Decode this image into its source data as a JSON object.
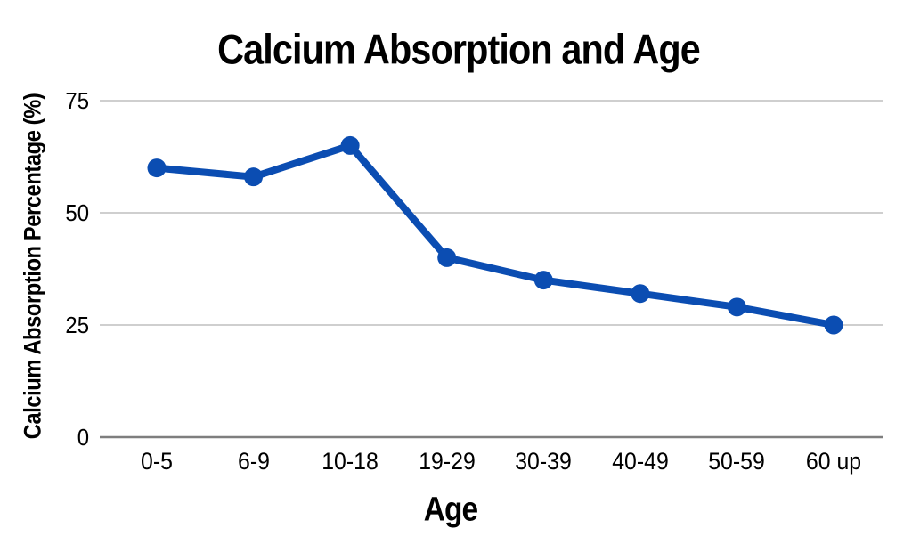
{
  "chart_data": {
    "type": "line",
    "title": "Calcium Absorption and Age",
    "xlabel": "Age",
    "ylabel": "Calcium Absorption Percentage (%)",
    "categories": [
      "0-5",
      "6-9",
      "10-18",
      "19-29",
      "30-39",
      "40-49",
      "50-59",
      "60 up"
    ],
    "series": [
      {
        "name": "Calcium Absorption Percentage",
        "values": [
          60,
          58,
          65,
          40,
          35,
          32,
          29,
          25
        ]
      }
    ],
    "yticks": [
      0,
      25,
      50,
      75
    ],
    "ylim": [
      0,
      75
    ],
    "grid": true,
    "legend_position": "none",
    "colors": {
      "line": "#0B4DB2",
      "marker": "#0B4DB2",
      "gridline": "#C8C8C8",
      "zero_axis_line": "#7E7E7E",
      "text": "#000000",
      "background": "#FFFFFF"
    }
  }
}
